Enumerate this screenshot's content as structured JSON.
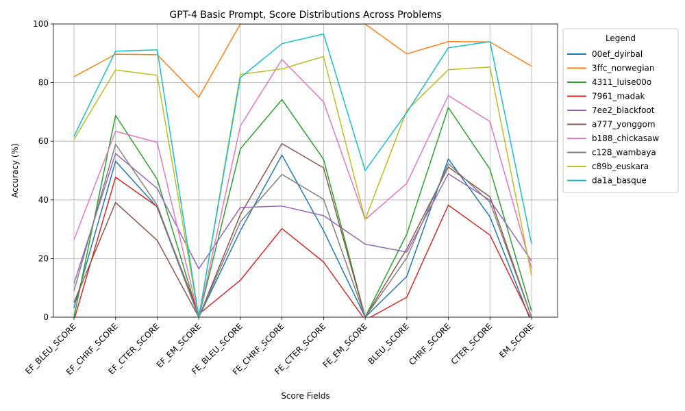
{
  "chart_data": {
    "type": "line",
    "title": "GPT-4 Basic Prompt, Score Distributions Across Problems",
    "xlabel": "Score Fields",
    "ylabel": "Accuracy (%)",
    "ylim": [
      0,
      100
    ],
    "yticks": [
      0,
      20,
      40,
      60,
      80,
      100
    ],
    "grid": true,
    "legend_title": "Legend",
    "legend_position": "outside-right",
    "categories": [
      "EF_BLEU_SCORE",
      "EF_CHRF_SCORE",
      "EF_CTER_SCORE",
      "EF_EM_SCORE",
      "FE_BLEU_SCORE",
      "FE_CHRF_SCORE",
      "FE_CTER_SCORE",
      "FE_EM_SCORE",
      "BLEU_SCORE",
      "CHRF_SCORE",
      "CTER_SCORE",
      "EM_SCORE"
    ],
    "series": [
      {
        "name": "00ef_dyirbal",
        "color": "#1f77b4",
        "values": [
          3.2,
          53.2,
          37.5,
          0,
          29.5,
          55.3,
          29.5,
          0,
          13.9,
          54.0,
          34.2,
          -2
        ]
      },
      {
        "name": "3ffc_norwegian",
        "color": "#ff7f0e",
        "values": [
          82.0,
          89.7,
          89.5,
          75.0,
          100.0,
          100.0,
          100.0,
          100.0,
          89.8,
          94.0,
          93.9,
          85.6
        ]
      },
      {
        "name": "4311_luise00o",
        "color": "#2ca02c",
        "values": [
          0,
          68.8,
          47.0,
          0,
          57.4,
          74.2,
          53.8,
          0,
          28.3,
          71.5,
          50.5,
          2.0
        ]
      },
      {
        "name": "7961_madak",
        "color": "#d62728",
        "values": [
          -1,
          47.7,
          37.7,
          1.0,
          12.6,
          30.2,
          18.8,
          -1,
          6.8,
          38.2,
          28.0,
          -1
        ]
      },
      {
        "name": "7ee2_blackfoot",
        "color": "#9467bd",
        "values": [
          11.5,
          55.8,
          43.9,
          16.5,
          37.4,
          37.9,
          34.6,
          24.9,
          22.2,
          48.9,
          39.9,
          19.2
        ]
      },
      {
        "name": "a777_yonggom",
        "color": "#8c564b",
        "values": [
          5.0,
          39.1,
          26.2,
          0,
          35.0,
          59.2,
          50.9,
          0,
          23.3,
          51.2,
          41.0,
          0
        ]
      },
      {
        "name": "b188_chickasaw",
        "color": "#e377c2",
        "values": [
          26.4,
          63.4,
          59.6,
          0,
          65.2,
          87.9,
          73.4,
          33.3,
          45.6,
          75.6,
          66.7,
          16.6
        ]
      },
      {
        "name": "c128_wambaya",
        "color": "#7f7f7f",
        "values": [
          9.0,
          59.0,
          38.2,
          0,
          32.5,
          48.7,
          40.2,
          0,
          20.2,
          52.4,
          39.2,
          0
        ]
      },
      {
        "name": "c89b_euskara",
        "color": "#bcbd22",
        "values": [
          60.6,
          84.3,
          82.5,
          0,
          82.8,
          84.7,
          88.9,
          33.3,
          70.5,
          84.4,
          85.3,
          14.2
        ]
      },
      {
        "name": "da1a_basque",
        "color": "#17becf",
        "values": [
          61.7,
          90.7,
          91.2,
          0,
          81.7,
          93.3,
          96.6,
          50.0,
          69.8,
          91.9,
          94.0,
          25.0
        ]
      }
    ]
  }
}
